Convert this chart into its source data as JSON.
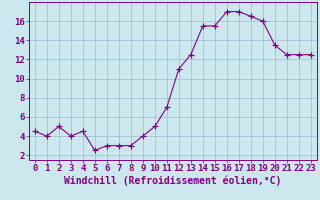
{
  "x": [
    0,
    1,
    2,
    3,
    4,
    5,
    6,
    7,
    8,
    9,
    10,
    11,
    12,
    13,
    14,
    15,
    16,
    17,
    18,
    19,
    20,
    21,
    22,
    23
  ],
  "y": [
    4.5,
    4.0,
    5.0,
    4.0,
    4.5,
    2.5,
    3.0,
    3.0,
    3.0,
    4.0,
    5.0,
    7.0,
    11.0,
    12.5,
    15.5,
    15.5,
    17.0,
    17.0,
    16.5,
    16.0,
    13.5,
    12.5,
    12.5,
    12.5
  ],
  "line_color": "#800080",
  "marker": "+",
  "marker_size": 4,
  "bg_color": "#cce8ee",
  "grid_color": "#99bbcc",
  "xlabel": "Windchill (Refroidissement éolien,°C)",
  "xlim": [
    -0.5,
    23.5
  ],
  "ylim": [
    1.5,
    18.0
  ],
  "yticks": [
    2,
    4,
    6,
    8,
    10,
    12,
    14,
    16
  ],
  "xticks": [
    0,
    1,
    2,
    3,
    4,
    5,
    6,
    7,
    8,
    9,
    10,
    11,
    12,
    13,
    14,
    15,
    16,
    17,
    18,
    19,
    20,
    21,
    22,
    23
  ],
  "axis_color": "#800080",
  "tick_color": "#800080",
  "label_color": "#800080",
  "xlabel_fontsize": 7,
  "tick_fontsize": 6.5,
  "line_width": 0.8,
  "marker_edge_width": 0.9
}
